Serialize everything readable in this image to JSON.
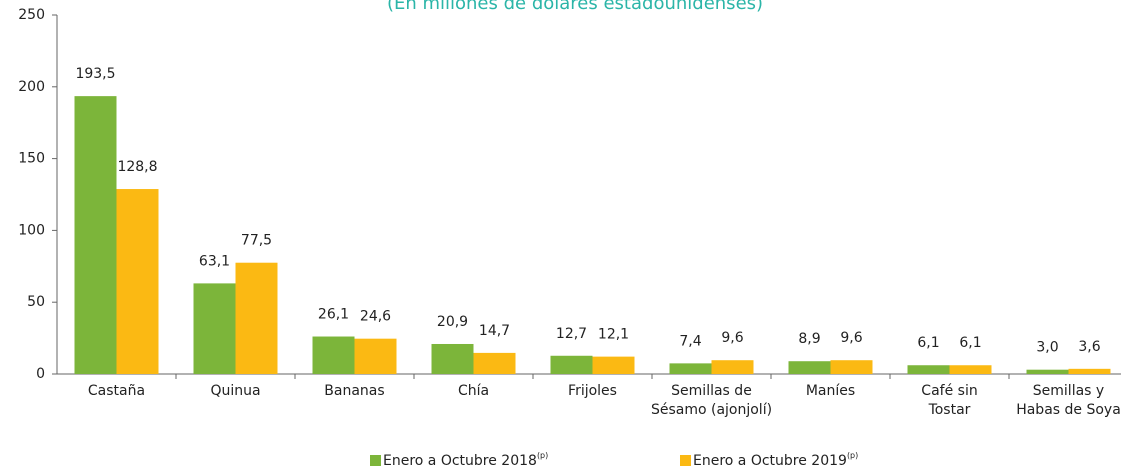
{
  "chart_data": {
    "type": "bar",
    "title": "(En millones de dólares estadounidenses)",
    "categories": [
      "Castaña",
      "Quinua",
      "Bananas",
      "Chía",
      "Frijoles",
      "Semillas de\nSésamo (ajonjolí)",
      "Maníes",
      "Café sin\nTostar",
      "Semillas y\nHabas de Soya"
    ],
    "series": [
      {
        "name": "Enero a Octubre 2018",
        "color": "#7cb53a",
        "values": [
          193.5,
          63.1,
          26.1,
          20.9,
          12.7,
          7.4,
          8.9,
          6.1,
          3.0
        ],
        "value_labels": [
          "193,5",
          "63,1",
          "26,1",
          "20,9",
          "12,7",
          "7,4",
          "8,9",
          "6,1",
          "3,0"
        ]
      },
      {
        "name": "Enero a Octubre 2019",
        "color": "#fbb913",
        "values": [
          128.8,
          77.5,
          24.6,
          14.7,
          12.1,
          9.6,
          9.6,
          6.1,
          3.6
        ],
        "value_labels": [
          "128,8",
          "77,5",
          "24,6",
          "14,7",
          "12,1",
          "9,6",
          "9,6",
          "6,1",
          "3,6"
        ]
      }
    ],
    "legend_superscript": "(p)",
    "ylim": [
      0,
      250
    ],
    "yticks": [
      0,
      50,
      100,
      150,
      200,
      250
    ],
    "grid": false
  }
}
